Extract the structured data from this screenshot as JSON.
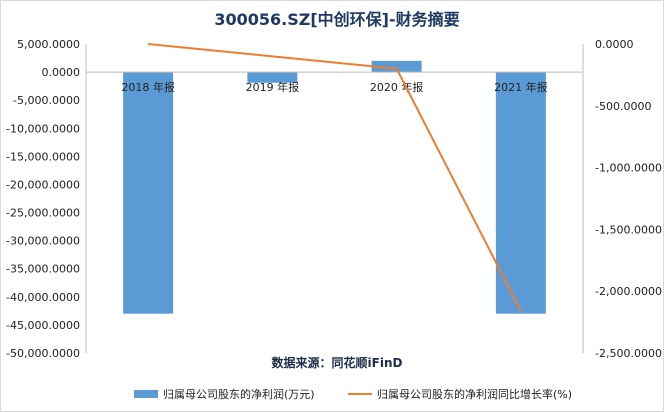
{
  "chart_data": {
    "type": "bar",
    "title": "300056.SZ[中创环保]-财务摘要",
    "source_note": "数据来源：同花顺iFinD",
    "categories": [
      "2018 年报",
      "2019 年报",
      "2020 年报",
      "2021 年报"
    ],
    "series": [
      {
        "name": "归属母公司股东的净利润(万元)",
        "type": "bar",
        "axis": "left",
        "color": "#5b9bd5",
        "values": [
          -43000,
          -1900,
          2000,
          -43000
        ]
      },
      {
        "name": "归属母公司股东的净利润同比增长率(%)",
        "type": "line",
        "axis": "right",
        "color": "#ed7d31",
        "values": [
          0,
          -100,
          -200,
          -2160
        ]
      }
    ],
    "y_left": {
      "min": -50000,
      "max": 5000,
      "ticks": [
        "5,000.0000",
        "0.0000",
        "-5,000.0000",
        "-10,000.0000",
        "-15,000.0000",
        "-20,000.0000",
        "-25,000.0000",
        "-30,000.0000",
        "-35,000.0000",
        "-40,000.0000",
        "-45,000.0000",
        "-50,000.0000"
      ]
    },
    "y_right": {
      "min": -2500,
      "max": 0,
      "ticks": [
        "0.0000",
        "-500.0000",
        "-1,000.0000",
        "-1,500.0000",
        "-2,000.0000",
        "-2,500.0000"
      ]
    },
    "legend_position": "bottom",
    "grid": false
  }
}
